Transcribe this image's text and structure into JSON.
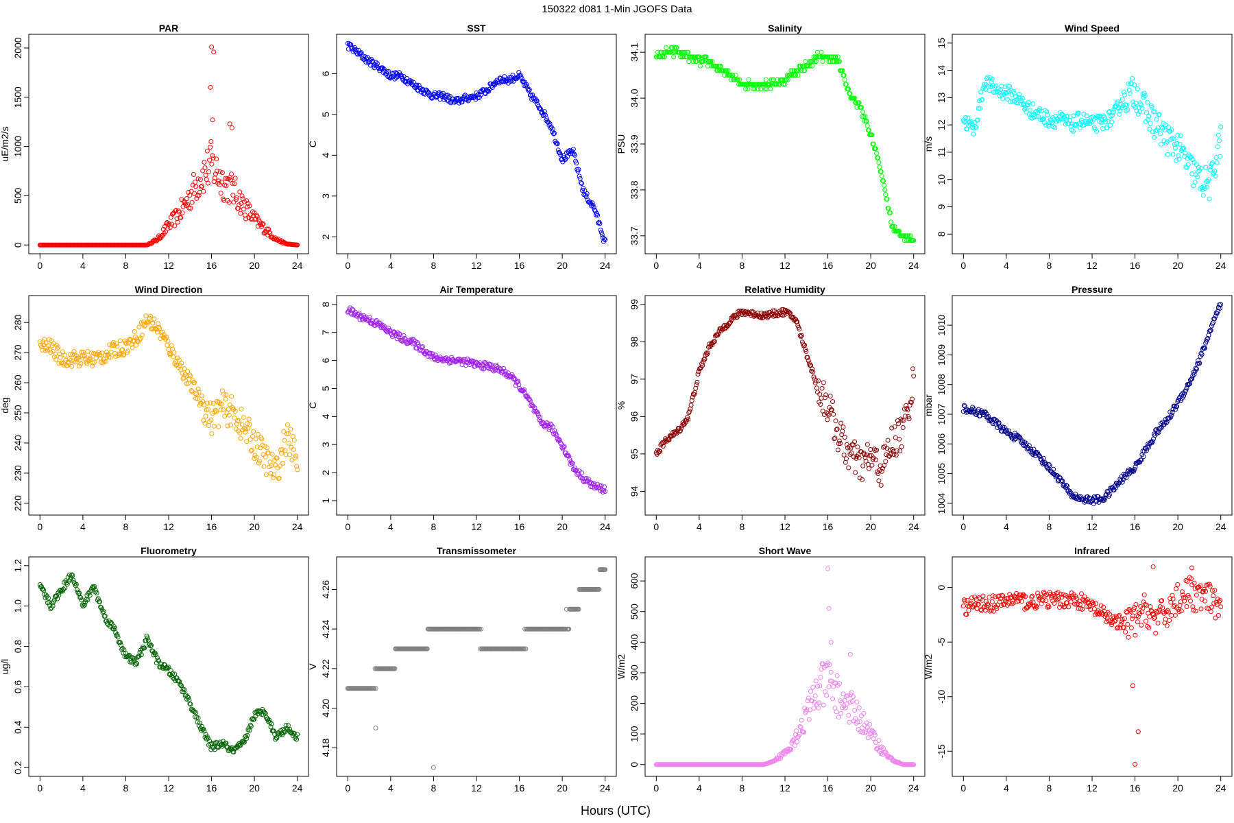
{
  "title": "150322   d081   1-Min  JGOFS Data",
  "xlabel": "Hours (UTC)",
  "chart_data": [
    {
      "type": "scatter",
      "title": "PAR",
      "ylabel": "uE/m2/s",
      "color": "#ff0000",
      "xlim": [
        0,
        24
      ],
      "ylim": [
        0,
        2050
      ],
      "xticks": [
        "0",
        "4",
        "8",
        "12",
        "16",
        "20",
        "24"
      ],
      "yticks": [
        0,
        500,
        1000,
        1500,
        2000
      ],
      "x": [
        0,
        2,
        4,
        6,
        8,
        10,
        11,
        12,
        13,
        14,
        15,
        16,
        17,
        18,
        19,
        20,
        21,
        22,
        23,
        24
      ],
      "y": [
        0,
        0,
        0,
        0,
        0,
        0,
        60,
        200,
        320,
        500,
        700,
        820,
        650,
        560,
        400,
        260,
        160,
        60,
        10,
        0
      ],
      "outliers": [
        [
          16,
          2010
        ],
        [
          16.2,
          1960
        ],
        [
          15.9,
          1600
        ],
        [
          16.1,
          1270
        ],
        [
          17.7,
          1230
        ],
        [
          17.9,
          1190
        ]
      ]
    },
    {
      "type": "scatter",
      "title": "SST",
      "ylabel": "C",
      "color": "#0000ff",
      "xlim": [
        0,
        24
      ],
      "ylim": [
        1.8,
        6.75
      ],
      "xticks": [
        "0",
        "4",
        "8",
        "12",
        "16",
        "20",
        "24"
      ],
      "yticks": [
        2,
        3,
        4,
        5,
        6
      ],
      "x": [
        0,
        1,
        2,
        3,
        4,
        5,
        6,
        7,
        8,
        9,
        10,
        11,
        12,
        13,
        14,
        15,
        16,
        17,
        18,
        19,
        20,
        21,
        22,
        23,
        24
      ],
      "y": [
        6.7,
        6.5,
        6.3,
        6.15,
        5.95,
        5.95,
        5.75,
        5.6,
        5.45,
        5.45,
        5.3,
        5.4,
        5.45,
        5.6,
        5.85,
        5.85,
        5.95,
        5.5,
        5.15,
        4.7,
        3.9,
        4.1,
        3.1,
        2.7,
        1.85
      ]
    },
    {
      "type": "scatter",
      "title": "Salinity",
      "ylabel": "PSU",
      "color": "#00ff00",
      "xlim": [
        0,
        24
      ],
      "ylim": [
        33.68,
        34.12
      ],
      "xticks": [
        "0",
        "4",
        "8",
        "12",
        "16",
        "20",
        "24"
      ],
      "yticks": [
        33.7,
        33.8,
        33.9,
        34.0,
        34.1
      ],
      "x": [
        0,
        1,
        2,
        3,
        4,
        5,
        6,
        7,
        8,
        9,
        10,
        11,
        12,
        13,
        14,
        15,
        16,
        17,
        18,
        19,
        20,
        21,
        22,
        23,
        24
      ],
      "y": [
        34.09,
        34.1,
        34.1,
        34.09,
        34.08,
        34.08,
        34.06,
        34.05,
        34.03,
        34.03,
        34.03,
        34.03,
        34.04,
        34.06,
        34.07,
        34.09,
        34.09,
        34.08,
        34.01,
        33.98,
        33.92,
        33.84,
        33.72,
        33.7,
        33.69
      ]
    },
    {
      "type": "scatter",
      "title": "Wind Speed",
      "ylabel": "m/s",
      "color": "#00ffff",
      "xlim": [
        0,
        24
      ],
      "ylim": [
        7.6,
        15.0
      ],
      "xticks": [
        "0",
        "4",
        "8",
        "12",
        "16",
        "20",
        "24"
      ],
      "yticks": [
        8,
        9,
        10,
        11,
        12,
        13,
        14,
        15
      ],
      "x": [
        0,
        1,
        2,
        3,
        4,
        5,
        6,
        7,
        8,
        9,
        10,
        11,
        12,
        13,
        14,
        15,
        16,
        17,
        18,
        19,
        20,
        21,
        22,
        23,
        24
      ],
      "y": [
        12.2,
        11.8,
        13.6,
        13.3,
        13.2,
        13.0,
        12.6,
        12.4,
        12.2,
        12.2,
        12.0,
        12.2,
        12.0,
        12.1,
        12.3,
        13.0,
        13.2,
        12.5,
        12.0,
        11.5,
        11.2,
        10.5,
        10.0,
        9.8,
        11.5
      ]
    },
    {
      "type": "scatter",
      "title": "Wind Direction",
      "ylabel": "deg",
      "color": "#ffa500",
      "xlim": [
        0,
        24
      ],
      "ylim": [
        219,
        286
      ],
      "xticks": [
        "0",
        "4",
        "8",
        "12",
        "16",
        "20",
        "24"
      ],
      "yticks": [
        220,
        230,
        240,
        250,
        260,
        270,
        280
      ],
      "x": [
        0,
        1,
        2,
        3,
        4,
        5,
        6,
        7,
        8,
        9,
        10,
        11,
        12,
        13,
        14,
        15,
        16,
        17,
        18,
        19,
        20,
        21,
        22,
        23,
        24
      ],
      "y": [
        272,
        272,
        268,
        268,
        268,
        268,
        269,
        271,
        272,
        275,
        281,
        278,
        272,
        266,
        260,
        254,
        248,
        252,
        250,
        245,
        240,
        235,
        230,
        242,
        235
      ]
    },
    {
      "type": "scatter",
      "title": "Air Temperature",
      "ylabel": "C",
      "color": "#a020f0",
      "xlim": [
        0,
        24
      ],
      "ylim": [
        0.8,
        8.0
      ],
      "xticks": [
        "0",
        "4",
        "8",
        "12",
        "16",
        "20",
        "24"
      ],
      "yticks": [
        1,
        2,
        3,
        4,
        5,
        6,
        7,
        8
      ],
      "x": [
        0,
        1,
        2,
        3,
        4,
        5,
        6,
        7,
        8,
        9,
        10,
        11,
        12,
        13,
        14,
        15,
        16,
        17,
        18,
        19,
        20,
        21,
        22,
        23,
        24
      ],
      "y": [
        7.8,
        7.6,
        7.45,
        7.25,
        7.0,
        6.8,
        6.65,
        6.4,
        6.1,
        6.05,
        6.0,
        5.95,
        5.85,
        5.8,
        5.7,
        5.5,
        5.1,
        4.5,
        3.8,
        3.6,
        3.0,
        2.2,
        1.8,
        1.5,
        1.4
      ]
    },
    {
      "type": "scatter",
      "title": "Relative Humidity",
      "ylabel": "%",
      "color": "#8b0000",
      "xlim": [
        0,
        24
      ],
      "ylim": [
        93.6,
        99.0
      ],
      "xticks": [
        "0",
        "4",
        "8",
        "12",
        "16",
        "20",
        "24"
      ],
      "yticks": [
        94,
        95,
        96,
        97,
        98,
        99
      ],
      "x": [
        0,
        1,
        2,
        3,
        4,
        5,
        6,
        7,
        8,
        9,
        10,
        11,
        12,
        13,
        14,
        15,
        16,
        17,
        18,
        19,
        20,
        21,
        22,
        23,
        24
      ],
      "y": [
        95.0,
        95.4,
        95.6,
        96.0,
        97.2,
        97.9,
        98.3,
        98.6,
        98.8,
        98.75,
        98.7,
        98.75,
        98.8,
        98.6,
        97.7,
        96.8,
        96.3,
        95.5,
        95.0,
        94.7,
        94.9,
        94.6,
        95.3,
        95.6,
        97.0
      ]
    },
    {
      "type": "scatter",
      "title": "Pressure",
      "ylabel": "mbar",
      "color": "#00008b",
      "xlim": [
        0,
        24
      ],
      "ylim": [
        1003.9,
        1010.7
      ],
      "xticks": [
        "0",
        "4",
        "8",
        "12",
        "16",
        "20",
        "24"
      ],
      "yticks": [
        1004,
        1005,
        1006,
        1007,
        1008,
        1009,
        1010
      ],
      "x": [
        0,
        1,
        2,
        3,
        4,
        5,
        6,
        7,
        8,
        9,
        10,
        11,
        12,
        13,
        14,
        15,
        16,
        17,
        18,
        19,
        20,
        21,
        22,
        23,
        24
      ],
      "y": [
        1007.2,
        1007.1,
        1007.0,
        1006.7,
        1006.4,
        1006.2,
        1005.9,
        1005.6,
        1005.2,
        1004.8,
        1004.3,
        1004.15,
        1004.1,
        1004.15,
        1004.5,
        1004.9,
        1005.2,
        1005.8,
        1006.4,
        1006.8,
        1007.4,
        1008.0,
        1008.8,
        1009.8,
        1010.7
      ]
    },
    {
      "type": "scatter",
      "title": "Fluorometry",
      "ylabel": "ug/l",
      "color": "#006400",
      "xlim": [
        0,
        24
      ],
      "ylim": [
        0.2,
        1.2
      ],
      "xticks": [
        "0",
        "4",
        "8",
        "12",
        "16",
        "20",
        "24"
      ],
      "yticks": [
        0.2,
        0.4,
        0.6,
        0.8,
        1.0,
        1.2
      ],
      "x": [
        0,
        1,
        2,
        3,
        4,
        5,
        6,
        7,
        8,
        9,
        10,
        11,
        12,
        13,
        14,
        15,
        16,
        17,
        18,
        19,
        20,
        21,
        22,
        23,
        24
      ],
      "y": [
        1.1,
        1.0,
        1.08,
        1.16,
        1.0,
        1.1,
        0.95,
        0.88,
        0.75,
        0.72,
        0.84,
        0.72,
        0.68,
        0.62,
        0.52,
        0.4,
        0.3,
        0.32,
        0.28,
        0.32,
        0.46,
        0.48,
        0.35,
        0.4,
        0.35
      ]
    },
    {
      "type": "scatter",
      "title": "Transmissometer",
      "ylabel": "V",
      "color": "#808080",
      "xlim": [
        0,
        24
      ],
      "ylim": [
        4.17,
        4.272
      ],
      "xticks": [
        "0",
        "4",
        "8",
        "12",
        "16",
        "20",
        "24"
      ],
      "yticks": [
        4.18,
        4.2,
        4.22,
        4.24,
        4.26
      ],
      "x": [
        0,
        1,
        2,
        3,
        4,
        5,
        6,
        7,
        8,
        9,
        10,
        11,
        12,
        13,
        14,
        15,
        16,
        17,
        18,
        19,
        20,
        21,
        22,
        23,
        24
      ],
      "y": [
        4.21,
        4.21,
        4.21,
        4.22,
        4.22,
        4.23,
        4.23,
        4.23,
        4.24,
        4.24,
        4.24,
        4.24,
        4.24,
        4.23,
        4.23,
        4.23,
        4.23,
        4.24,
        4.24,
        4.24,
        4.24,
        4.25,
        4.26,
        4.26,
        4.27
      ],
      "outliers": [
        [
          8,
          4.17
        ],
        [
          2.6,
          4.19
        ]
      ]
    },
    {
      "type": "scatter",
      "title": "Short Wave",
      "ylabel": "W/m2",
      "color": "#ee82ee",
      "xlim": [
        0,
        24
      ],
      "ylim": [
        -10,
        650
      ],
      "xticks": [
        "0",
        "4",
        "8",
        "12",
        "16",
        "20",
        "24"
      ],
      "yticks": [
        0,
        100,
        200,
        300,
        400,
        500,
        600
      ],
      "x": [
        0,
        2,
        4,
        6,
        8,
        10,
        11,
        12,
        13,
        14,
        15,
        16,
        17,
        18,
        19,
        20,
        21,
        22,
        23,
        24
      ],
      "y": [
        0,
        0,
        0,
        0,
        0,
        0,
        10,
        40,
        90,
        160,
        240,
        270,
        220,
        190,
        150,
        100,
        50,
        15,
        0,
        0
      ],
      "outliers": [
        [
          16,
          640
        ],
        [
          16.1,
          510
        ],
        [
          16.3,
          400
        ],
        [
          18.1,
          360
        ]
      ]
    },
    {
      "type": "scatter",
      "title": "Infrared",
      "ylabel": "W/m2",
      "color": "#ff0000",
      "xlim": [
        0,
        24
      ],
      "ylim": [
        -16.5,
        2.0
      ],
      "xticks": [
        "0",
        "4",
        "8",
        "12",
        "16",
        "20",
        "24"
      ],
      "yticks": [
        -15,
        -10,
        -5,
        0
      ],
      "x": [
        0,
        1,
        2,
        3,
        4,
        5,
        6,
        7,
        8,
        9,
        10,
        11,
        12,
        13,
        14,
        15,
        16,
        17,
        18,
        19,
        20,
        21,
        22,
        23,
        24
      ],
      "y": [
        -1.8,
        -1.6,
        -1.4,
        -1.5,
        -1.2,
        -1.0,
        -1.4,
        -1.2,
        -1.1,
        -1.2,
        -1.0,
        -1.3,
        -1.8,
        -2.5,
        -3.0,
        -3.5,
        -3.0,
        -2.0,
        -3.0,
        -2.2,
        -1.0,
        -0.5,
        -0.8,
        -1.2,
        -1.8
      ],
      "outliers": [
        [
          16,
          -16.2
        ],
        [
          16.3,
          -13.2
        ],
        [
          15.8,
          -9.0
        ],
        [
          17.7,
          1.9
        ],
        [
          21.3,
          1.8
        ]
      ]
    }
  ]
}
